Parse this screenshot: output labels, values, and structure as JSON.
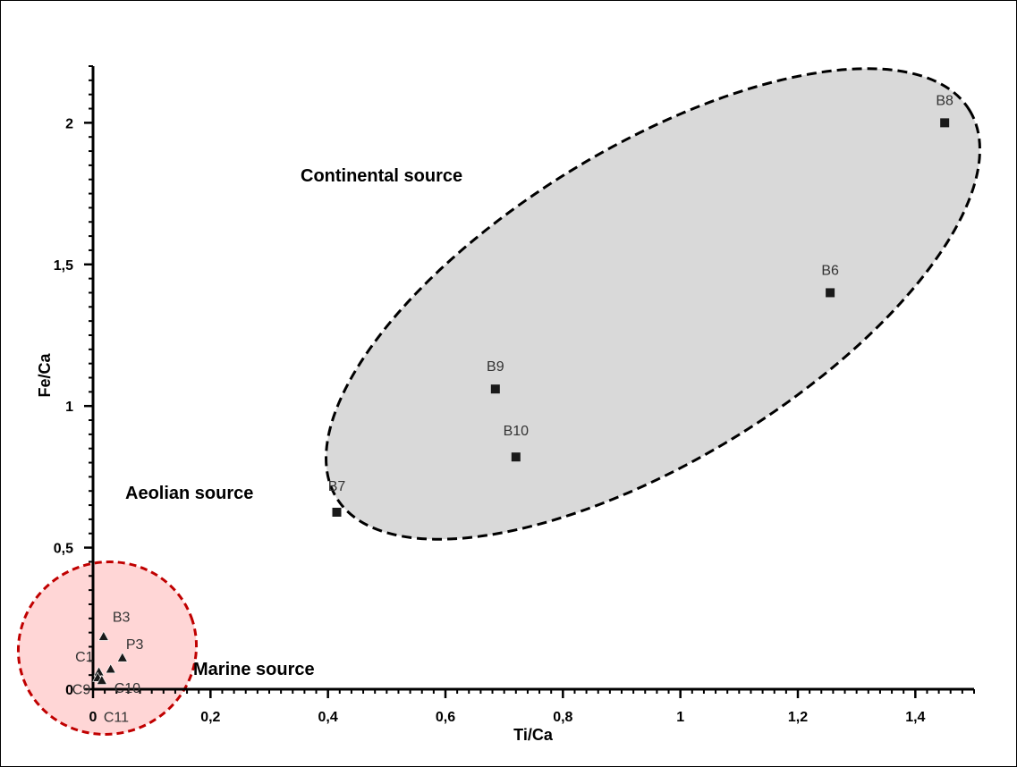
{
  "chart_data": {
    "type": "scatter",
    "xlabel": "Ti/Ca",
    "ylabel": "Fe/Ca",
    "xlim": [
      0,
      1.5
    ],
    "ylim": [
      0,
      2.2
    ],
    "x_ticks": [
      {
        "value": 0,
        "label": "0"
      },
      {
        "value": 0.2,
        "label": "0,2"
      },
      {
        "value": 0.4,
        "label": "0,4"
      },
      {
        "value": 0.6,
        "label": "0,6"
      },
      {
        "value": 0.8,
        "label": "0,8"
      },
      {
        "value": 1,
        "label": "1"
      },
      {
        "value": 1.2,
        "label": "1,2"
      },
      {
        "value": 1.4,
        "label": "1,4"
      }
    ],
    "y_ticks": [
      {
        "value": 0,
        "label": "0"
      },
      {
        "value": 0.5,
        "label": "0,5"
      },
      {
        "value": 1,
        "label": "1"
      },
      {
        "value": 1.5,
        "label": "1,5"
      },
      {
        "value": 2,
        "label": "2"
      }
    ],
    "grid": false,
    "series": [
      {
        "marker": "square",
        "color": "#1a1a1a",
        "points": [
          {
            "label": "B8",
            "x": 1.45,
            "y": 2.0
          },
          {
            "label": "B6",
            "x": 1.255,
            "y": 1.4
          },
          {
            "label": "B9",
            "x": 0.685,
            "y": 1.06
          },
          {
            "label": "B10",
            "x": 0.72,
            "y": 0.82
          },
          {
            "label": "B7",
            "x": 0.415,
            "y": 0.625
          }
        ]
      },
      {
        "marker": "triangle",
        "color": "#1a1a1a",
        "points": [
          {
            "label": "B3",
            "x": 0.018,
            "y": 0.185
          },
          {
            "label": "P3",
            "x": 0.05,
            "y": 0.11
          },
          {
            "label": "C10",
            "x": 0.03,
            "y": 0.07
          },
          {
            "label": "C1",
            "x": 0.01,
            "y": 0.06
          },
          {
            "label": "C9",
            "x": 0.008,
            "y": 0.04
          },
          {
            "label": "C11",
            "x": 0.015,
            "y": 0.03
          }
        ]
      }
    ],
    "annotations": [
      {
        "text": "Continental source"
      },
      {
        "text": "Aeolian source"
      },
      {
        "text": "Marine source"
      }
    ],
    "regions": [
      {
        "shape": "ellipse",
        "fill": "#d9d9d9",
        "stroke": "#000000",
        "dashed": true
      },
      {
        "shape": "ellipse",
        "fill": "#ffd6d6",
        "stroke": "#c00000",
        "dashed": true
      }
    ]
  }
}
